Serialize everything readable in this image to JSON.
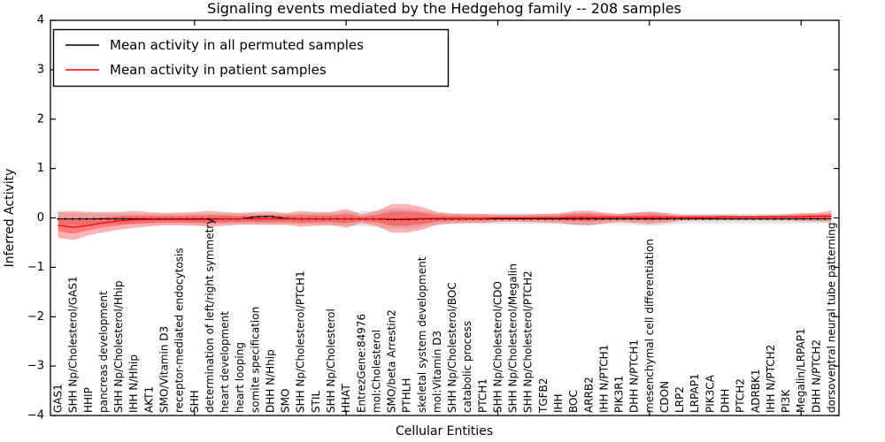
{
  "chart_data": {
    "type": "line",
    "title": "Signaling events mediated by the Hedgehog family -- 208 samples",
    "xlabel": "Cellular Entities",
    "ylabel": "Inferred Activity",
    "ylim": [
      -4,
      4
    ],
    "xlim": [
      0.5,
      52.5
    ],
    "ytick_labels": [
      "−4",
      "−3",
      "−2",
      "−1",
      "0",
      "1",
      "2",
      "3",
      "4"
    ],
    "ytick_values": [
      -4,
      -3,
      -2,
      -1,
      0,
      1,
      2,
      3,
      4
    ],
    "xtick_values": [
      10,
      20,
      30,
      40,
      50
    ],
    "grid": false,
    "colors": {
      "permuted": "#000000",
      "patient": "#ff0000",
      "patient_band": "#ff0000",
      "permuted_band": "#000000"
    },
    "legend": {
      "position": "upper left",
      "entries": [
        {
          "label": "Mean activity in all permuted samples",
          "color": "#000000"
        },
        {
          "label": "Mean activity in patient samples",
          "color": "#ff0000"
        }
      ]
    },
    "categories": [
      "GAS1",
      "SHH Np/Cholesterol/GAS1",
      "HHIP",
      "pancreas development",
      "SHH Np/Cholesterol/Hhip",
      "IHH N/Hhip",
      "AKT1",
      "SMO/Vitamin D3",
      "receptor-mediated endocytosis",
      "SHH",
      "determination of left/right symmetry",
      "heart development",
      "heart looping",
      "somite specification",
      "DHH N/Hhip",
      "SMO",
      "SHH Np/Cholesterol/PTCH1",
      "STIL",
      "SHH Np/Cholesterol",
      "HHAT",
      "EntrezGene:84976",
      "mol:Cholesterol",
      "SMO/beta Arrestin2",
      "PTHLH",
      "skeletal system development",
      "mol:Vitamin D3",
      "SHH Np/Cholesterol/BOC",
      "catabolic process",
      "PTCH1",
      "SHH Np/Cholesterol/CDO",
      "SHH Np/Cholesterol/Megalin",
      "SHH Np/Cholesterol/PTCH2",
      "TGFB2",
      "IHH",
      "BOC",
      "ARRB2",
      "IHH N/PTCH1",
      "PIK3R1",
      "DHH N/PTCH1",
      "mesenchymal cell differentiation",
      "CDON",
      "LRP2",
      "LRPAP1",
      "PIK3CA",
      "DHH",
      "PTCH2",
      "ADRBK1",
      "IHH N/PTCH2",
      "PI3K",
      "Megalin/LRPAP1",
      "DHH N/PTCH2",
      "dorsoventral neural tube patterning"
    ],
    "series": [
      {
        "name": "Mean activity in all permuted samples",
        "color": "#000000",
        "values": [
          -0.02,
          -0.02,
          -0.02,
          -0.02,
          -0.02,
          -0.02,
          -0.02,
          -0.02,
          -0.02,
          -0.02,
          -0.02,
          -0.02,
          -0.02,
          0.02,
          0.03,
          -0.01,
          -0.02,
          -0.02,
          -0.02,
          -0.02,
          -0.02,
          -0.02,
          -0.03,
          -0.03,
          -0.02,
          -0.02,
          -0.02,
          -0.02,
          -0.02,
          -0.02,
          -0.02,
          -0.02,
          -0.02,
          -0.02,
          -0.02,
          -0.02,
          -0.02,
          -0.02,
          -0.02,
          -0.02,
          -0.02,
          -0.02,
          -0.02,
          -0.02,
          -0.02,
          -0.02,
          -0.02,
          -0.02,
          -0.02,
          -0.02,
          -0.02,
          -0.02
        ]
      },
      {
        "name": "Mean activity in patient samples",
        "color": "#ff0000",
        "values": [
          -0.15,
          -0.19,
          -0.15,
          -0.1,
          -0.06,
          -0.04,
          -0.03,
          -0.03,
          -0.03,
          -0.03,
          -0.03,
          -0.02,
          -0.02,
          -0.02,
          -0.02,
          -0.02,
          -0.02,
          -0.02,
          -0.02,
          -0.02,
          -0.02,
          -0.02,
          -0.02,
          -0.02,
          -0.01,
          -0.01,
          -0.01,
          -0.01,
          -0.01,
          0,
          0,
          0,
          0,
          0,
          0.01,
          0.01,
          0.01,
          0.01,
          0.01,
          0.01,
          0.01,
          0.01,
          0.01,
          0.01,
          0.02,
          0.02,
          0.02,
          0.02,
          0.02,
          0.02,
          0.03,
          0.03
        ]
      }
    ],
    "bands": [
      {
        "name": "permuted-samples-range",
        "color": "#000000",
        "opacity": 0.11,
        "upper": [
          0.1,
          0.1,
          0.09,
          0.08,
          0.08,
          0.08,
          0.08,
          0.08,
          0.08,
          0.08,
          0.08,
          0.08,
          0.08,
          0.08,
          0.08,
          0.08,
          0.09,
          0.09,
          0.1,
          0.12,
          0.13,
          0.15,
          0.18,
          0.18,
          0.14,
          0.1,
          0.08,
          0.08,
          0.08,
          0.08,
          0.08,
          0.08,
          0.08,
          0.08,
          0.1,
          0.11,
          0.09,
          0.08,
          0.1,
          0.12,
          0.1,
          0.08,
          0.08,
          0.08,
          0.08,
          0.08,
          0.08,
          0.08,
          0.08,
          0.08,
          0.08,
          0.08
        ],
        "lower": [
          -0.14,
          -0.14,
          -0.13,
          -0.12,
          -0.12,
          -0.12,
          -0.12,
          -0.12,
          -0.12,
          -0.12,
          -0.12,
          -0.12,
          -0.12,
          -0.12,
          -0.12,
          -0.12,
          -0.13,
          -0.13,
          -0.14,
          -0.16,
          -0.17,
          -0.19,
          -0.22,
          -0.22,
          -0.18,
          -0.14,
          -0.12,
          -0.12,
          -0.12,
          -0.12,
          -0.12,
          -0.12,
          -0.12,
          -0.12,
          -0.14,
          -0.15,
          -0.13,
          -0.12,
          -0.14,
          -0.16,
          -0.14,
          -0.12,
          -0.11,
          -0.11,
          -0.11,
          -0.11,
          -0.11,
          -0.11,
          -0.11,
          -0.11,
          -0.11,
          -0.11
        ]
      },
      {
        "name": "patient-samples-range",
        "color": "#ff0000",
        "opacity": 0.3,
        "inner_scale": 0.5,
        "upper": [
          0.13,
          0.14,
          0.12,
          0.12,
          0.12,
          0.14,
          0.12,
          0.1,
          0.11,
          0.12,
          0.14,
          0.12,
          0.1,
          0.12,
          0.13,
          0.1,
          0.14,
          0.12,
          0.12,
          0.18,
          0.07,
          0.14,
          0.28,
          0.28,
          0.22,
          0.12,
          0.09,
          0.08,
          0.08,
          0.07,
          0.07,
          0.07,
          0.08,
          0.09,
          0.14,
          0.15,
          0.11,
          0.08,
          0.11,
          0.13,
          0.1,
          0.06,
          0.06,
          0.06,
          0.06,
          0.05,
          0.05,
          0.06,
          0.07,
          0.1,
          0.1,
          0.15
        ],
        "lower": [
          -0.4,
          -0.45,
          -0.35,
          -0.29,
          -0.24,
          -0.2,
          -0.17,
          -0.15,
          -0.15,
          -0.16,
          -0.18,
          -0.16,
          -0.14,
          -0.14,
          -0.15,
          -0.14,
          -0.18,
          -0.16,
          -0.15,
          -0.2,
          -0.1,
          -0.16,
          -0.3,
          -0.3,
          -0.24,
          -0.14,
          -0.11,
          -0.1,
          -0.1,
          -0.08,
          -0.08,
          -0.08,
          -0.09,
          -0.1,
          -0.14,
          -0.15,
          -0.11,
          -0.08,
          -0.1,
          -0.12,
          -0.1,
          -0.06,
          -0.05,
          -0.05,
          -0.05,
          -0.05,
          -0.05,
          -0.05,
          -0.05,
          -0.07,
          -0.07,
          -0.08
        ]
      }
    ]
  }
}
